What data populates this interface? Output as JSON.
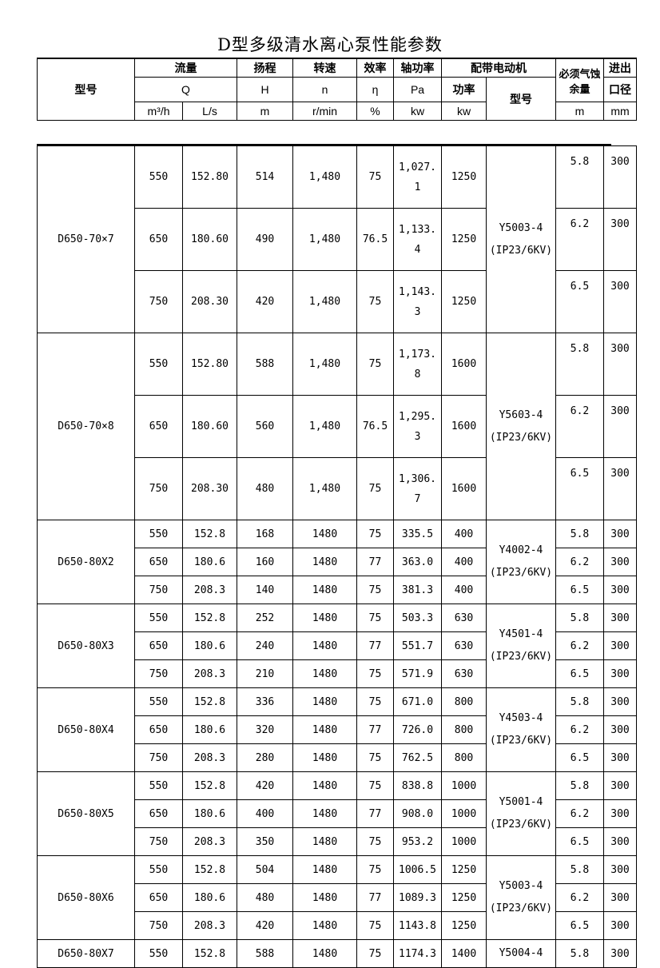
{
  "title": "D型多级清水离心泵性能参数",
  "header": {
    "model": "型号",
    "flow": "流量",
    "flow_sym": "Q",
    "flow_unit1": "m³/h",
    "flow_unit2": "L/s",
    "head": "扬程",
    "head_sym": "H",
    "head_unit": "m",
    "speed": "转速",
    "speed_sym": "n",
    "speed_unit": "r/min",
    "eff": "效率",
    "eff_sym": "η",
    "eff_unit": "%",
    "shaft": "轴功率",
    "shaft_sym": "Pa",
    "shaft_unit": "kw",
    "motor": "配带电动机",
    "motor_power": "功率",
    "motor_power_unit": "kw",
    "motor_model": "型号",
    "npsh": "必须气蚀余量",
    "npsh_unit": "m",
    "port1": "进出",
    "port2": "口径",
    "port_unit": "mm"
  },
  "groups": [
    {
      "model": "D650-70×7",
      "motor": [
        "Y5003-4",
        "(IP23/6KV)"
      ],
      "tall": true,
      "rows": [
        [
          "550",
          "152.80",
          "514",
          "1,480",
          "75",
          "1,027.1",
          "1250",
          "5.8",
          "300"
        ],
        [
          "650",
          "180.60",
          "490",
          "1,480",
          "76.5",
          "1,133.4",
          "1250",
          "6.2",
          "300"
        ],
        [
          "750",
          "208.30",
          "420",
          "1,480",
          "75",
          "1,143.3",
          "1250",
          "6.5",
          "300"
        ]
      ]
    },
    {
      "model": "D650-70×8",
      "motor": [
        "Y5603-4",
        "(IP23/6KV)"
      ],
      "tall": true,
      "rows": [
        [
          "550",
          "152.80",
          "588",
          "1,480",
          "75",
          "1,173.8",
          "1600",
          "5.8",
          "300"
        ],
        [
          "650",
          "180.60",
          "560",
          "1,480",
          "76.5",
          "1,295.3",
          "1600",
          "6.2",
          "300"
        ],
        [
          "750",
          "208.30",
          "480",
          "1,480",
          "75",
          "1,306.7",
          "1600",
          "6.5",
          "300"
        ]
      ]
    },
    {
      "model": "D650-80X2",
      "motor": [
        "Y4002-4",
        "(IP23/6KV)"
      ],
      "tall": false,
      "rows": [
        [
          "550",
          "152.8",
          "168",
          "1480",
          "75",
          "335.5",
          "400",
          "5.8",
          "300"
        ],
        [
          "650",
          "180.6",
          "160",
          "1480",
          "77",
          "363.0",
          "400",
          "6.2",
          "300"
        ],
        [
          "750",
          "208.3",
          "140",
          "1480",
          "75",
          "381.3",
          "400",
          "6.5",
          "300"
        ]
      ]
    },
    {
      "model": "D650-80X3",
      "motor": [
        "Y4501-4",
        "(IP23/6KV)"
      ],
      "tall": false,
      "rows": [
        [
          "550",
          "152.8",
          "252",
          "1480",
          "75",
          "503.3",
          "630",
          "5.8",
          "300"
        ],
        [
          "650",
          "180.6",
          "240",
          "1480",
          "77",
          "551.7",
          "630",
          "6.2",
          "300"
        ],
        [
          "750",
          "208.3",
          "210",
          "1480",
          "75",
          "571.9",
          "630",
          "6.5",
          "300"
        ]
      ]
    },
    {
      "model": "D650-80X4",
      "motor": [
        "Y4503-4",
        "(IP23/6KV)"
      ],
      "tall": false,
      "rows": [
        [
          "550",
          "152.8",
          "336",
          "1480",
          "75",
          "671.0",
          "800",
          "5.8",
          "300"
        ],
        [
          "650",
          "180.6",
          "320",
          "1480",
          "77",
          "726.0",
          "800",
          "6.2",
          "300"
        ],
        [
          "750",
          "208.3",
          "280",
          "1480",
          "75",
          "762.5",
          "800",
          "6.5",
          "300"
        ]
      ]
    },
    {
      "model": "D650-80X5",
      "motor": [
        "Y5001-4",
        "(IP23/6KV)"
      ],
      "tall": false,
      "rows": [
        [
          "550",
          "152.8",
          "420",
          "1480",
          "75",
          "838.8",
          "1000",
          "5.8",
          "300"
        ],
        [
          "650",
          "180.6",
          "400",
          "1480",
          "77",
          "908.0",
          "1000",
          "6.2",
          "300"
        ],
        [
          "750",
          "208.3",
          "350",
          "1480",
          "75",
          "953.2",
          "1000",
          "6.5",
          "300"
        ]
      ]
    },
    {
      "model": "D650-80X6",
      "motor": [
        "Y5003-4",
        "(IP23/6KV)"
      ],
      "tall": false,
      "rows": [
        [
          "550",
          "152.8",
          "504",
          "1480",
          "75",
          "1006.5",
          "1250",
          "5.8",
          "300"
        ],
        [
          "650",
          "180.6",
          "480",
          "1480",
          "77",
          "1089.3",
          "1250",
          "6.2",
          "300"
        ],
        [
          "750",
          "208.3",
          "420",
          "1480",
          "75",
          "1143.8",
          "1250",
          "6.5",
          "300"
        ]
      ]
    },
    {
      "model": "D650-80X7",
      "motor": [
        "Y5004-4"
      ],
      "tall": false,
      "rows": [
        [
          "550",
          "152.8",
          "588",
          "1480",
          "75",
          "1174.3",
          "1400",
          "5.8",
          "300"
        ]
      ]
    }
  ]
}
